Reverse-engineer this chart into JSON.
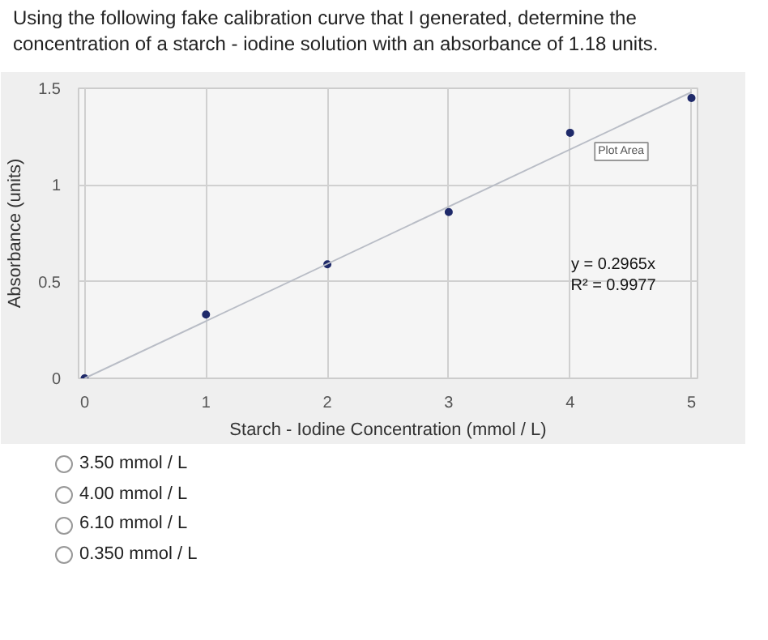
{
  "chart_data": {
    "type": "scatter",
    "title": "Using the following fake calibration curve that I generated, determine the concentration of a starch - iodine solution with an absorbance of 1.18 units.",
    "xlabel": "Starch - Iodine Concentration (mmol / L)",
    "ylabel": "Absorbance (units)",
    "series": [
      {
        "color": "#1f2a6a",
        "marker": "circle",
        "x": [
          0,
          1,
          2,
          3,
          4,
          5
        ],
        "values": [
          0,
          0.33,
          0.59,
          0.86,
          1.27,
          1.45
        ]
      },
      {
        "type": "line",
        "color": "#b9bdc6",
        "x": [
          0,
          5
        ],
        "values": [
          0,
          1.48
        ]
      }
    ],
    "xlim": [
      -0.05,
      5.05
    ],
    "ylim": [
      0,
      1.5
    ],
    "xticks": [
      0,
      1,
      2,
      3,
      4,
      5
    ],
    "yticks": [
      0,
      {
        "value": 0.5,
        "label": "0.5"
      },
      1,
      {
        "value": 1.5,
        "label": "1.5"
      }
    ],
    "grid": true,
    "annotations": [
      "y = 0.2965x",
      "R² = 0.9977",
      "Plot Area",
      "3.50 mmol / L",
      "4.00 mmol / L",
      "6.10 mmol / L",
      "0.350 mmol / L"
    ]
  }
}
